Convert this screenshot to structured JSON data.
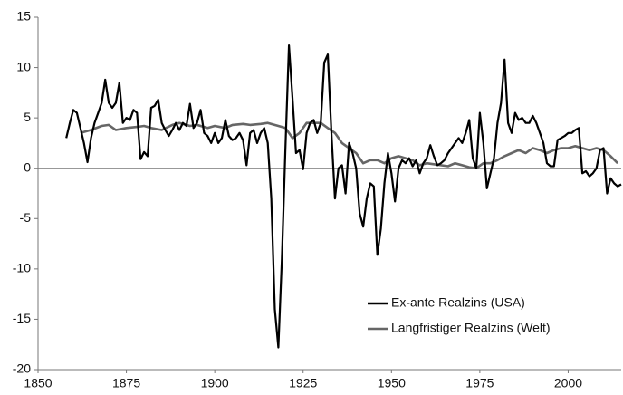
{
  "chart_data": {
    "type": "line",
    "xlim": [
      1850,
      2015
    ],
    "xticks": [
      1850,
      1875,
      1900,
      1925,
      1950,
      1975,
      2000
    ],
    "ylim": [
      -20,
      15
    ],
    "yticks": [
      -20,
      -15,
      -10,
      -5,
      0,
      5,
      10,
      15
    ],
    "grid": false,
    "legend": "lower right",
    "series": [
      {
        "name": "Ex-ante Realzins (USA)",
        "color": "#000000",
        "x": [
          1858,
          1859,
          1860,
          1861,
          1862,
          1863,
          1864,
          1865,
          1866,
          1867,
          1868,
          1869,
          1870,
          1871,
          1872,
          1873,
          1874,
          1875,
          1876,
          1877,
          1878,
          1879,
          1880,
          1881,
          1882,
          1883,
          1884,
          1885,
          1886,
          1887,
          1888,
          1889,
          1890,
          1891,
          1892,
          1893,
          1894,
          1895,
          1896,
          1897,
          1898,
          1899,
          1900,
          1901,
          1902,
          1903,
          1904,
          1905,
          1906,
          1907,
          1908,
          1909,
          1910,
          1911,
          1912,
          1913,
          1914,
          1915,
          1916,
          1917,
          1918,
          1919,
          1920,
          1921,
          1922,
          1923,
          1924,
          1925,
          1926,
          1927,
          1928,
          1929,
          1930,
          1931,
          1932,
          1933,
          1934,
          1935,
          1936,
          1937,
          1938,
          1939,
          1940,
          1941,
          1942,
          1943,
          1944,
          1945,
          1946,
          1947,
          1948,
          1949,
          1950,
          1951,
          1952,
          1953,
          1954,
          1955,
          1956,
          1957,
          1958,
          1959,
          1960,
          1961,
          1962,
          1963,
          1964,
          1965,
          1966,
          1967,
          1968,
          1969,
          1970,
          1971,
          1972,
          1973,
          1974,
          1975,
          1976,
          1977,
          1978,
          1979,
          1980,
          1981,
          1982,
          1983,
          1984,
          1985,
          1986,
          1987,
          1988,
          1989,
          1990,
          1991,
          1992,
          1993,
          1994,
          1995,
          1996,
          1997,
          1998,
          1999,
          2000,
          2001,
          2002,
          2003,
          2004,
          2005,
          2006,
          2007,
          2008,
          2009,
          2010,
          2011,
          2012,
          2013,
          2014,
          2015
        ],
        "values": [
          3,
          4.5,
          5.8,
          5.5,
          4,
          2.5,
          0.6,
          3,
          4.5,
          5.5,
          6.5,
          8.8,
          6.5,
          6,
          6.5,
          8.5,
          4.5,
          5,
          4.8,
          5.8,
          5.5,
          0.9,
          1.6,
          1.2,
          6,
          6.2,
          6.8,
          4.5,
          3.8,
          3.2,
          3.8,
          4.5,
          3.8,
          4.5,
          4.2,
          6.4,
          4,
          4.5,
          5.8,
          3.5,
          3.2,
          2.5,
          3.5,
          2.5,
          3,
          4.8,
          3.2,
          2.8,
          3,
          3.5,
          2.8,
          0.3,
          3.5,
          3.8,
          2.5,
          3.5,
          4,
          2.5,
          -3,
          -14,
          -17.8,
          -9,
          2,
          12.2,
          7,
          1.5,
          1.8,
          -0.1,
          3.5,
          4.5,
          4.8,
          3.5,
          4.5,
          10.5,
          11.3,
          3.5,
          -3,
          0,
          0.3,
          -2.5,
          2.5,
          1.5,
          0,
          -4.5,
          -5.8,
          -3,
          -1.5,
          -1.8,
          -8.6,
          -6,
          -1.5,
          1.5,
          -0.5,
          -3.3,
          0,
          0.8,
          0.5,
          1,
          0.2,
          0.8,
          -0.5,
          0.5,
          1,
          2.3,
          1.2,
          0.3,
          0.5,
          0.8,
          1.5,
          2,
          2.5,
          3,
          2.5,
          3.5,
          4.8,
          1,
          0,
          5.5,
          2.5,
          -2,
          -0.5,
          1,
          4.5,
          6.5,
          10.8,
          4.5,
          3.5,
          5.5,
          4.8,
          5,
          4.5,
          4.5,
          5.2,
          4.5,
          3.5,
          2.5,
          0.5,
          0.2,
          0.2,
          2.8,
          3,
          3.2,
          3.5,
          3.5,
          3.8,
          4,
          -0.5,
          -0.3,
          -0.8,
          -0.5,
          0,
          1.8,
          2,
          -2.5,
          -1,
          -1.5,
          -1.8,
          -1.6
        ]
      },
      {
        "name": "Langfristiger Realzins (Welt)",
        "color": "#666666",
        "x": [
          1862,
          1865,
          1868,
          1870,
          1872,
          1875,
          1878,
          1880,
          1882,
          1885,
          1888,
          1890,
          1893,
          1895,
          1898,
          1900,
          1903,
          1905,
          1908,
          1910,
          1913,
          1915,
          1918,
          1920,
          1922,
          1924,
          1926,
          1928,
          1930,
          1932,
          1934,
          1936,
          1938,
          1940,
          1942,
          1944,
          1946,
          1948,
          1950,
          1952,
          1954,
          1956,
          1958,
          1960,
          1962,
          1964,
          1966,
          1968,
          1970,
          1972,
          1974,
          1976,
          1978,
          1980,
          1982,
          1984,
          1986,
          1988,
          1990,
          1992,
          1994,
          1996,
          1998,
          2000,
          2002,
          2004,
          2006,
          2008,
          2010,
          2012,
          2014
        ],
        "values": [
          3.5,
          3.8,
          4.2,
          4.3,
          3.8,
          4.0,
          4.1,
          4.2,
          4.0,
          3.8,
          4.3,
          4.5,
          4.2,
          4.3,
          4.0,
          4.2,
          4.0,
          4.3,
          4.4,
          4.3,
          4.4,
          4.5,
          4.2,
          4.0,
          3.0,
          3.5,
          4.5,
          4.5,
          4.5,
          4.0,
          3.5,
          2.5,
          2.0,
          1.5,
          0.5,
          0.8,
          0.8,
          0.5,
          1.0,
          1.2,
          1.0,
          0.8,
          0.3,
          0.5,
          0.4,
          0.3,
          0.2,
          0.5,
          0.3,
          0.1,
          0.0,
          0.5,
          0.5,
          0.8,
          1.2,
          1.5,
          1.8,
          1.5,
          2.0,
          1.8,
          1.5,
          1.8,
          2.0,
          2.0,
          2.2,
          2.0,
          1.8,
          2.0,
          1.8,
          1.2,
          0.5
        ]
      }
    ]
  }
}
